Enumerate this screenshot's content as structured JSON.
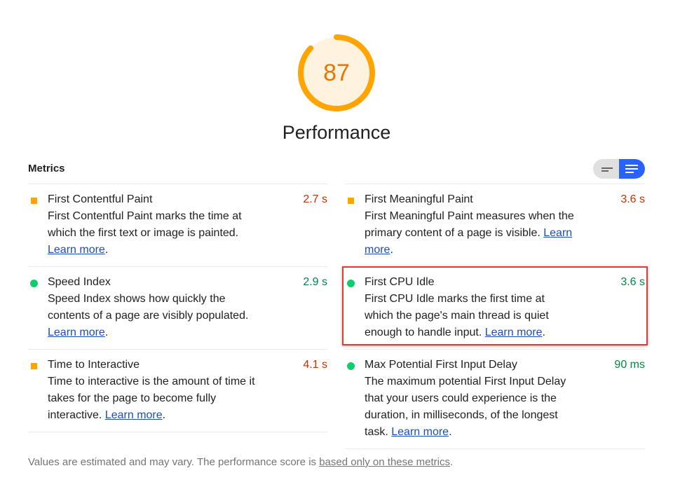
{
  "score": {
    "value": 87,
    "fraction": 0.87,
    "color": "#ffa400",
    "bg": "#fff3e0"
  },
  "category_title": "Performance",
  "metrics_header": "Metrics",
  "view_toggle": {
    "options": [
      "compact-view",
      "expanded-view"
    ],
    "selected": "expanded-view"
  },
  "learn_more": "Learn more",
  "left": [
    {
      "name": "First Contentful Paint",
      "value": "2.7 s",
      "status": "avg",
      "desc": "First Contentful Paint marks the time at which the first text or image is painted."
    },
    {
      "name": "Speed Index",
      "value": "2.9 s",
      "status": "pass",
      "desc": "Speed Index shows how quickly the contents of a page are visibly populated."
    },
    {
      "name": "Time to Interactive",
      "value": "4.1 s",
      "status": "avg",
      "desc": "Time to interactive is the amount of time it takes for the page to become fully interactive."
    }
  ],
  "right": [
    {
      "name": "First Meaningful Paint",
      "value": "3.6 s",
      "status": "avg",
      "desc": "First Meaningful Paint measures when the primary content of a page is visible."
    },
    {
      "name": "First CPU Idle",
      "value": "3.6 s",
      "status": "pass",
      "desc": "First CPU Idle marks the first time at which the page's main thread is quiet enough to handle input."
    },
    {
      "name": "Max Potential First Input Delay",
      "value": "90 ms",
      "status": "pass",
      "desc": "The maximum potential First Input Delay that your users could experience is the duration, in milliseconds, of the longest task."
    }
  ],
  "footer": {
    "text": "Values are estimated and may vary. The performance score is ",
    "link": "based only on these metrics",
    "end": "."
  }
}
